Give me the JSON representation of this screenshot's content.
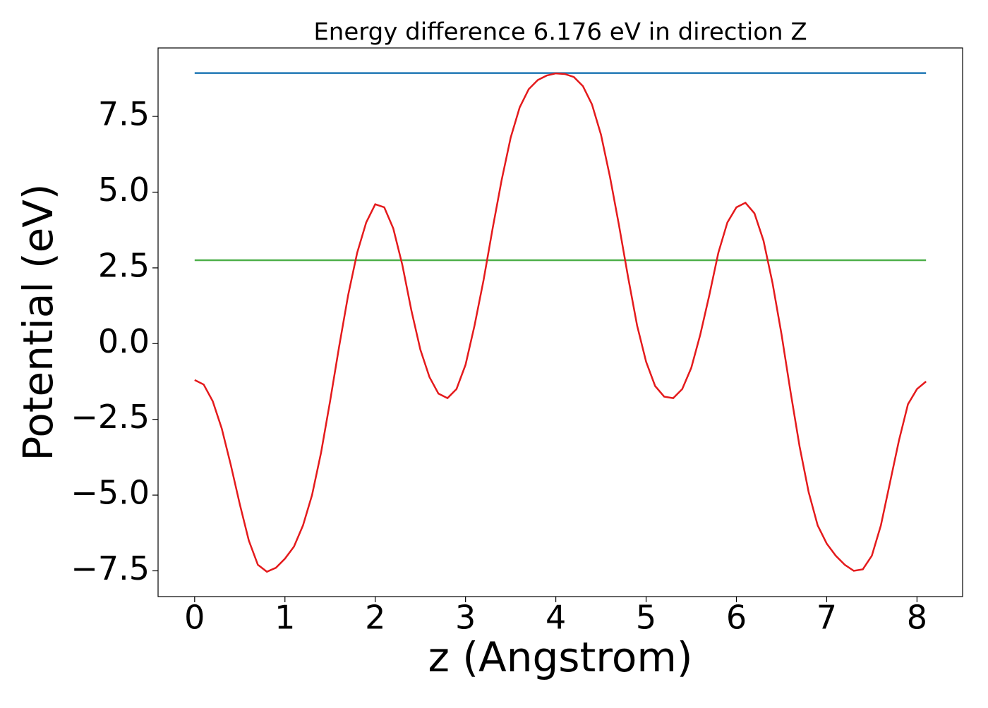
{
  "chart_data": {
    "type": "line",
    "title": "Energy difference 6.176 eV in direction Z",
    "xlabel": "z (Angstrom)",
    "ylabel": "Potential (eV)",
    "xlim": [
      -0.405,
      8.505
    ],
    "ylim": [
      -8.35,
      9.76
    ],
    "xticks": [
      0,
      1,
      2,
      3,
      4,
      5,
      6,
      7,
      8
    ],
    "yticks": [
      {
        "value": -7.5,
        "label": "−7.5"
      },
      {
        "value": -5,
        "label": "−5.0"
      },
      {
        "value": -2.5,
        "label": "−2.5"
      },
      {
        "value": 0,
        "label": "0.0"
      },
      2.5,
      {
        "value": 5,
        "label": "5.0"
      },
      7.5
    ],
    "series": [
      {
        "color": "#1f77b4",
        "x": [
          0,
          8.1
        ],
        "values": [
          8.93,
          8.93
        ]
      },
      {
        "color": "#4daf4a",
        "x": [
          0,
          8.1
        ],
        "values": [
          2.754,
          2.754
        ]
      },
      {
        "color": "#e41a1c",
        "x": [
          0,
          0.1,
          0.2,
          0.3,
          0.4,
          0.5,
          0.6,
          0.7,
          0.8,
          0.9,
          1.0,
          1.1,
          1.2,
          1.3,
          1.4,
          1.5,
          1.6,
          1.7,
          1.8,
          1.9,
          2.0,
          2.1,
          2.2,
          2.3,
          2.4,
          2.5,
          2.6,
          2.7,
          2.8,
          2.9,
          3.0,
          3.1,
          3.2,
          3.3,
          3.4,
          3.5,
          3.6,
          3.7,
          3.8,
          3.9,
          4.0,
          4.1,
          4.2,
          4.3,
          4.4,
          4.5,
          4.6,
          4.7,
          4.8,
          4.9,
          5.0,
          5.1,
          5.2,
          5.3,
          5.4,
          5.5,
          5.6,
          5.7,
          5.8,
          5.9,
          6.0,
          6.1,
          6.2,
          6.3,
          6.4,
          6.5,
          6.6,
          6.7,
          6.8,
          6.9,
          7.0,
          7.1,
          7.2,
          7.3,
          7.4,
          7.5,
          7.6,
          7.7,
          7.8,
          7.9,
          8.0,
          8.1
        ],
        "values": [
          -1.2,
          -1.35,
          -1.9,
          -2.8,
          -4.0,
          -5.3,
          -6.5,
          -7.3,
          -7.53,
          -7.4,
          -7.1,
          -6.7,
          -6.0,
          -5.0,
          -3.6,
          -1.9,
          -0.1,
          1.6,
          3.0,
          4.0,
          4.6,
          4.5,
          3.8,
          2.6,
          1.1,
          -0.2,
          -1.1,
          -1.65,
          -1.8,
          -1.5,
          -0.7,
          0.6,
          2.1,
          3.8,
          5.4,
          6.8,
          7.8,
          8.4,
          8.7,
          8.85,
          8.92,
          8.9,
          8.8,
          8.5,
          7.9,
          6.9,
          5.5,
          3.9,
          2.2,
          0.6,
          -0.6,
          -1.4,
          -1.75,
          -1.8,
          -1.5,
          -0.8,
          0.3,
          1.6,
          3.0,
          4.0,
          4.5,
          4.65,
          4.3,
          3.4,
          2.0,
          0.3,
          -1.6,
          -3.4,
          -4.9,
          -6.0,
          -6.6,
          -7.0,
          -7.3,
          -7.5,
          -7.45,
          -7.0,
          -6.0,
          -4.6,
          -3.2,
          -2.0,
          -1.5,
          -1.25
        ]
      }
    ]
  }
}
